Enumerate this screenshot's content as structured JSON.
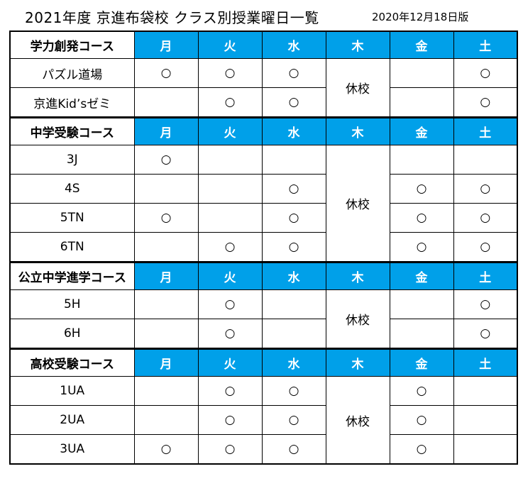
{
  "title": "2021年度 京進布袋校 クラス別授業曜日一覧",
  "edition": "2020年12月18日版",
  "days": [
    "月",
    "火",
    "水",
    "木",
    "金",
    "土"
  ],
  "closed_label": "休校",
  "mark": "○",
  "sections": [
    {
      "course": "学力創発コース",
      "rows": [
        {
          "name": "パズル道場",
          "marks": [
            "○",
            "○",
            "○",
            "",
            "",
            "○"
          ]
        },
        {
          "name": "京進Kid’sゼミ",
          "marks": [
            "",
            "○",
            "○",
            "",
            "",
            "○"
          ]
        }
      ]
    },
    {
      "course": "中学受験コース",
      "rows": [
        {
          "name": "3J",
          "marks": [
            "○",
            "",
            "",
            "",
            "",
            ""
          ]
        },
        {
          "name": "4S",
          "marks": [
            "",
            "",
            "○",
            "",
            "○",
            "○"
          ]
        },
        {
          "name": "5TN",
          "marks": [
            "○",
            "",
            "○",
            "",
            "○",
            "○"
          ]
        },
        {
          "name": "6TN",
          "marks": [
            "",
            "○",
            "○",
            "",
            "○",
            "○"
          ]
        }
      ]
    },
    {
      "course": "公立中学進学コース",
      "rows": [
        {
          "name": "5H",
          "marks": [
            "",
            "○",
            "",
            "",
            "",
            "○"
          ]
        },
        {
          "name": "6H",
          "marks": [
            "",
            "○",
            "",
            "",
            "",
            "○"
          ]
        }
      ]
    },
    {
      "course": "高校受験コース",
      "rows": [
        {
          "name": "1UA",
          "marks": [
            "",
            "○",
            "○",
            "",
            "○",
            ""
          ]
        },
        {
          "name": "2UA",
          "marks": [
            "",
            "○",
            "○",
            "",
            "○",
            ""
          ]
        },
        {
          "name": "3UA",
          "marks": [
            "○",
            "○",
            "○",
            "",
            "○",
            ""
          ]
        }
      ]
    }
  ],
  "colors": {
    "header_bg": "#00a0e9",
    "header_text": "#ffffff"
  }
}
